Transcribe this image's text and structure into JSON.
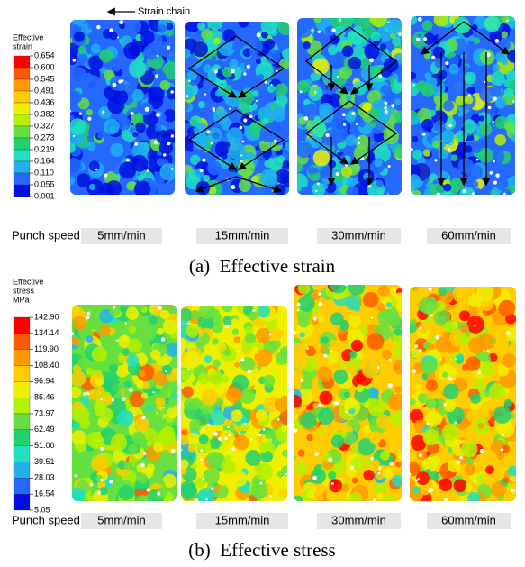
{
  "annotation": "Strain chain",
  "rows": [
    {
      "legend_title": [
        "Effective",
        "strain"
      ],
      "levels": [
        "0.654",
        "0.600",
        "0.545",
        "0.491",
        "0.436",
        "0.382",
        "0.327",
        "0.273",
        "0.219",
        "0.164",
        "0.110",
        "0.055",
        "0.001"
      ],
      "speed_label": "Punch speed",
      "speeds": [
        "5mm/min",
        "15mm/min",
        "30mm/min",
        "60mm/min"
      ],
      "caption": "(a)  Effective strain"
    },
    {
      "legend_title": [
        "Effective",
        "stress",
        "MPa"
      ],
      "levels": [
        "142.90",
        "134.14",
        "119.90",
        "108.40",
        "96.94",
        "85.46",
        "73.97",
        "62.49",
        "51.00",
        "39.51",
        "28.03",
        "16.54",
        "5.05"
      ],
      "speed_label": "Punch speed",
      "speeds": [
        "5mm/min",
        "15mm/min",
        "30mm/min",
        "60mm/min"
      ],
      "caption": "(b)  Effective stress"
    }
  ]
}
